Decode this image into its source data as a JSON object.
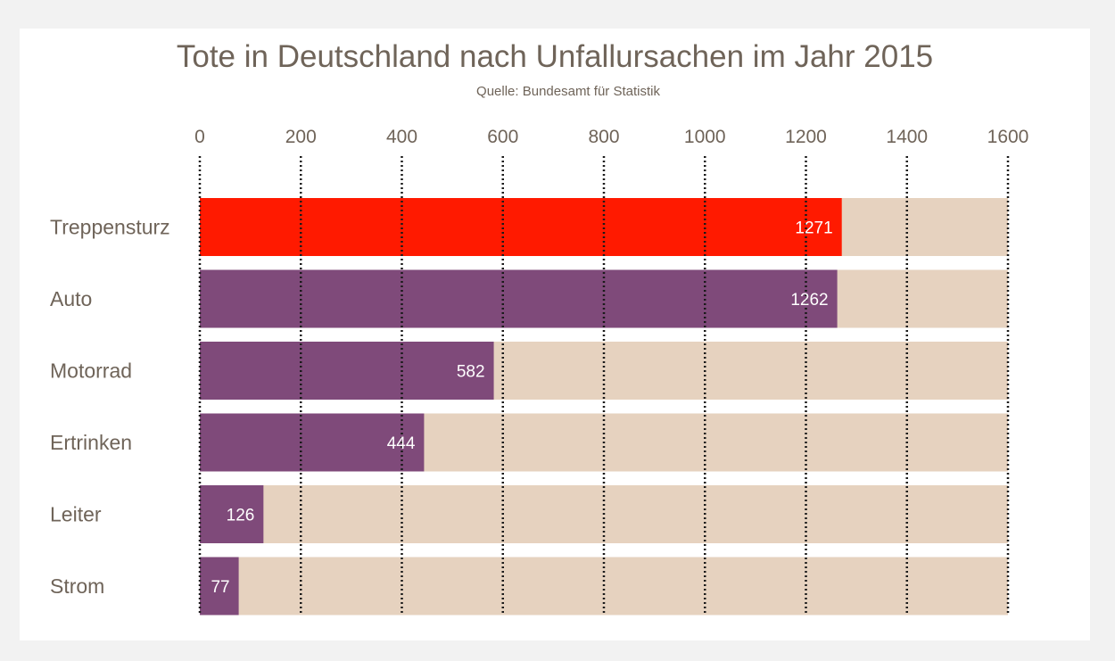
{
  "chart_data": {
    "type": "bar",
    "orientation": "horizontal",
    "title": "Tote in Deutschland nach Unfallursachen im Jahr 2015",
    "subtitle": "Quelle: Bundesamt für Statistik",
    "categories": [
      "Treppensturz",
      "Auto",
      "Motorrad",
      "Ertrinken",
      "Leiter",
      "Strom"
    ],
    "values": [
      1271,
      1262,
      582,
      444,
      126,
      77
    ],
    "value_labels": [
      "1271",
      "1262",
      "582",
      "444",
      "126",
      "77"
    ],
    "xlim": [
      0,
      1600
    ],
    "x_ticks": [
      "0",
      "200",
      "400",
      "600",
      "800",
      "1000",
      "1200",
      "1400",
      "1600"
    ],
    "x_tick_values": [
      0,
      200,
      400,
      600,
      800,
      1000,
      1200,
      1400,
      1600
    ],
    "x_axis_position": "top",
    "grid": true,
    "grid_style": "dotted",
    "legend": "none",
    "colors": {
      "highlight": "#ff1a00",
      "bar": "#7f4a7a",
      "background_track": "#e6d2bf",
      "text": "#6f6459",
      "value_text": "#ffffff",
      "grid": "#1a1a1a"
    },
    "highlight_category": "Treppensturz"
  }
}
